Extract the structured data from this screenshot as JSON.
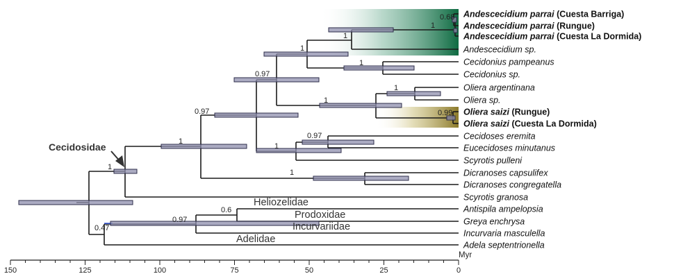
{
  "colors": {
    "green_clade": "#1f7a4e",
    "olive_clade": "#9a8a3a",
    "branch": "#1a1a1a",
    "bar_fill": "#8f8fae",
    "bar_stroke": "#2d2d4a",
    "highlight_blue": "#3a5bd8"
  },
  "taxa": [
    {
      "genus": "Andescecidium parrai",
      "suffix": " (Cuesta Barriga)",
      "bold": true
    },
    {
      "genus": "Andescecidium parrai",
      "suffix": " (Rungue)",
      "bold": true
    },
    {
      "genus": "Andescecidium parrai",
      "suffix": " (Cuesta La Dormida)",
      "bold": true
    },
    {
      "genus": "Andescecidium sp.",
      "suffix": "",
      "bold": false
    },
    {
      "genus": "Cecidonius pampeanus",
      "suffix": "",
      "bold": false
    },
    {
      "genus": "Cecidonius sp.",
      "suffix": "",
      "bold": false
    },
    {
      "genus": "Oliera argentinana",
      "suffix": "",
      "bold": false
    },
    {
      "genus": "Oliera sp.",
      "suffix": "",
      "bold": false
    },
    {
      "genus": "Oliera saizi",
      "suffix": " (Rungue)",
      "bold": true
    },
    {
      "genus": "Oliera saizi",
      "suffix": " (Cuesta La Dormida)",
      "bold": true
    },
    {
      "genus": "Cecidoses eremita",
      "suffix": "",
      "bold": false
    },
    {
      "genus": "Eucecidoses minutanus",
      "suffix": "",
      "bold": false
    },
    {
      "genus": "Scyrotis pulleni",
      "suffix": "",
      "bold": false
    },
    {
      "genus": "Dicranoses capsulifex",
      "suffix": "",
      "bold": false
    },
    {
      "genus": "Dicranoses congregatella",
      "suffix": "",
      "bold": false
    },
    {
      "genus": "Scyrotis granosa",
      "suffix": "",
      "bold": false
    },
    {
      "genus": "Antispila ampelopsia",
      "suffix": "",
      "bold": false
    },
    {
      "genus": "Greya enchrysa",
      "suffix": "",
      "bold": false
    },
    {
      "genus": "Incurvaria masculella",
      "suffix": "",
      "bold": false
    },
    {
      "genus": "Adela septentrionella",
      "suffix": "",
      "bold": false
    }
  ],
  "supports": [
    "0.68",
    "1",
    "1",
    "1",
    "0.97",
    "1",
    "1",
    "1",
    "0.99",
    "0.97",
    "0.97",
    "1",
    "1",
    "1",
    "0.6",
    "0.97",
    "0.47"
  ],
  "families": [
    "Heliozelidae",
    "Prodoxidae",
    "Incurvariidae",
    "Adelidae"
  ],
  "clade_label": "Cecidosidae",
  "axis": {
    "ticks": [
      150,
      125,
      100,
      75,
      50,
      25,
      0
    ],
    "unit": "Myr",
    "range": [
      150,
      0
    ]
  }
}
